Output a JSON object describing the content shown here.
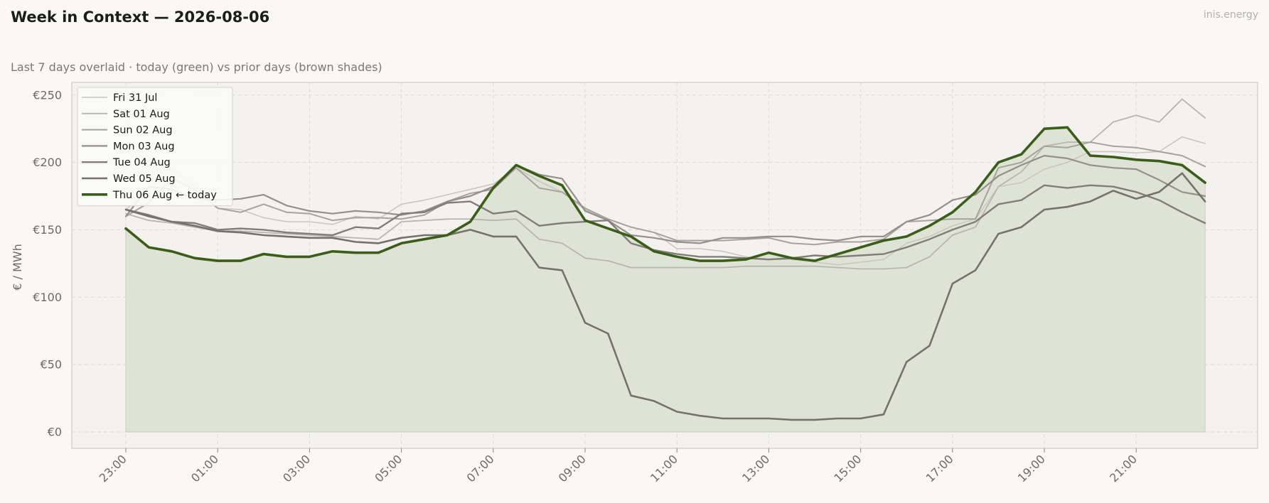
{
  "header": {
    "title": "Week in Context — 2026-08-06",
    "subtitle": "Last 7 days overlaid  ·  today (green) vs prior days (brown shades)",
    "brand": "inis.energy"
  },
  "colors": {
    "today": "#3a5e1a",
    "today_fill": "#dde1d3",
    "plot_bg": "#f3f2ee",
    "page_bg": "#f9f8f5"
  },
  "chart_data": {
    "type": "line",
    "title": "Week in Context — 2026-08-06",
    "ylabel": "€ / MWh",
    "xlabel": "",
    "ylim": [
      -12,
      260
    ],
    "y_ticks": [
      0,
      50,
      100,
      150,
      200,
      250
    ],
    "y_tick_labels": [
      "€0",
      "€50",
      "€100",
      "€150",
      "€200",
      "€250"
    ],
    "x_ticks": [
      "23:00",
      "01:00",
      "03:00",
      "05:00",
      "07:00",
      "09:00",
      "11:00",
      "13:00",
      "15:00",
      "17:00",
      "19:00",
      "21:00"
    ],
    "x": [
      "23:00",
      "23:30",
      "00:00",
      "00:30",
      "01:00",
      "01:30",
      "02:00",
      "02:30",
      "03:00",
      "03:30",
      "04:00",
      "04:30",
      "05:00",
      "05:30",
      "06:00",
      "06:30",
      "07:00",
      "07:30",
      "08:00",
      "08:30",
      "09:00",
      "09:30",
      "10:00",
      "10:30",
      "11:00",
      "11:30",
      "12:00",
      "12:30",
      "13:00",
      "13:30",
      "14:00",
      "14:30",
      "15:00",
      "15:30",
      "16:00",
      "16:30",
      "17:00",
      "17:30",
      "18:00",
      "18:30",
      "19:00",
      "19:30",
      "20:00",
      "20:30",
      "21:00",
      "21:30",
      "22:00",
      "22:30"
    ],
    "grid": true,
    "legend_position": "top-left",
    "series": [
      {
        "name": "Fri 31 Jul",
        "color": "#c9c5c1",
        "width": 1.5,
        "values": [
          165,
          180,
          196,
          182,
          166,
          165,
          159,
          156,
          156,
          154,
          160,
          158,
          169,
          172,
          176,
          180,
          184,
          196,
          186,
          178,
          165,
          158,
          152,
          148,
          136,
          136,
          134,
          130,
          128,
          128,
          126,
          124,
          126,
          128,
          140,
          145,
          153,
          158,
          182,
          185,
          195,
          200,
          208,
          208,
          207,
          208,
          219,
          214
        ]
      },
      {
        "name": "Sat 01 Aug",
        "color": "#b9b5b1",
        "width": 1.8,
        "values": [
          162,
          157,
          155,
          152,
          149,
          149,
          148,
          147,
          146,
          145,
          144,
          143,
          156,
          157,
          158,
          158,
          157,
          158,
          143,
          140,
          129,
          127,
          122,
          122,
          122,
          122,
          122,
          123,
          123,
          123,
          123,
          122,
          121,
          121,
          122,
          130,
          146,
          152,
          182,
          193,
          212,
          215,
          215,
          230,
          235,
          230,
          247,
          233
        ]
      },
      {
        "name": "Sun 02 Aug",
        "color": "#a7a29e",
        "width": 2.0,
        "values": [
          160,
          170,
          188,
          180,
          166,
          163,
          169,
          163,
          162,
          157,
          159,
          159,
          158,
          161,
          171,
          177,
          180,
          196,
          181,
          178,
          166,
          158,
          152,
          148,
          142,
          142,
          142,
          143,
          144,
          140,
          139,
          141,
          141,
          143,
          156,
          157,
          158,
          158,
          196,
          200,
          212,
          211,
          215,
          212,
          211,
          208,
          205,
          197
        ]
      },
      {
        "name": "Mon 03 Aug",
        "color": "#959089",
        "width": 2.2,
        "values": [
          160,
          182,
          180,
          173,
          172,
          173,
          176,
          168,
          164,
          162,
          164,
          163,
          161,
          164,
          171,
          175,
          182,
          198,
          191,
          188,
          164,
          157,
          146,
          144,
          141,
          140,
          144,
          144,
          145,
          145,
          143,
          142,
          145,
          145,
          156,
          161,
          172,
          176,
          190,
          198,
          205,
          203,
          198,
          196,
          195,
          187,
          178,
          175
        ]
      },
      {
        "name": "Tue 04 Aug",
        "color": "#837d78",
        "width": 2.4,
        "values": [
          165,
          161,
          156,
          155,
          150,
          151,
          150,
          148,
          147,
          146,
          152,
          151,
          162,
          163,
          170,
          171,
          162,
          164,
          153,
          155,
          156,
          157,
          140,
          135,
          132,
          130,
          130,
          129,
          128,
          129,
          131,
          130,
          131,
          132,
          137,
          143,
          150,
          156,
          169,
          172,
          183,
          181,
          183,
          182,
          178,
          172,
          163,
          155
        ]
      },
      {
        "name": "Wed 05 Aug",
        "color": "#77716b",
        "width": 2.6,
        "values": [
          165,
          160,
          156,
          153,
          149,
          148,
          146,
          145,
          144,
          144,
          141,
          140,
          144,
          146,
          146,
          150,
          145,
          145,
          122,
          120,
          81,
          73,
          27,
          23,
          15,
          12,
          10,
          10,
          10,
          9,
          9,
          10,
          10,
          13,
          52,
          64,
          110,
          120,
          147,
          152,
          165,
          167,
          171,
          179,
          173,
          178,
          192,
          171
        ]
      },
      {
        "name": "Thu 06 Aug  ← today",
        "color": "#3a5e1a",
        "width": 3.6,
        "today": true,
        "values": [
          151,
          137,
          134,
          129,
          127,
          127,
          132,
          130,
          130,
          134,
          133,
          133,
          140,
          143,
          146,
          156,
          181,
          198,
          190,
          183,
          157,
          151,
          145,
          134,
          130,
          127,
          127,
          128,
          133,
          129,
          127,
          132,
          137,
          142,
          145,
          153,
          163,
          178,
          200,
          206,
          225,
          226,
          205,
          204,
          202,
          201,
          198,
          185
        ]
      }
    ]
  }
}
